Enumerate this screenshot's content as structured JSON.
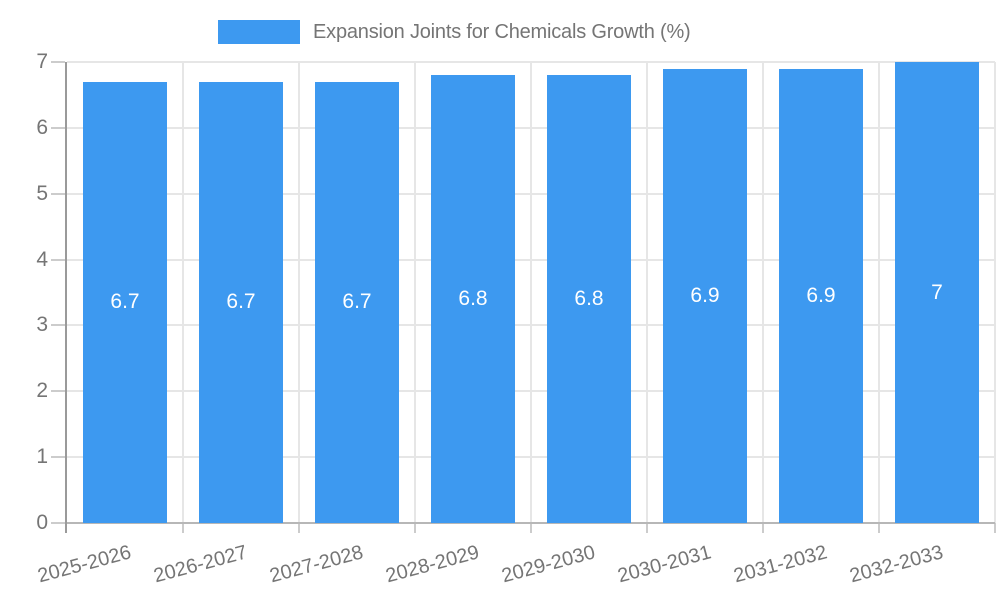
{
  "chart_data": {
    "type": "bar",
    "title": "",
    "legend": "Expansion Joints for Chemicals Growth (%)",
    "legend_position": "top",
    "categories": [
      "2025-2026",
      "2026-2027",
      "2027-2028",
      "2028-2029",
      "2029-2030",
      "2030-2031",
      "2031-2032",
      "2032-2033"
    ],
    "values": [
      6.7,
      6.7,
      6.7,
      6.8,
      6.8,
      6.9,
      6.9,
      7
    ],
    "value_labels": [
      "6.7",
      "6.7",
      "6.7",
      "6.8",
      "6.8",
      "6.9",
      "6.9",
      "7"
    ],
    "xlabel": "",
    "ylabel": "",
    "ylim": [
      0,
      7
    ],
    "yticks": [
      0,
      1,
      2,
      3,
      4,
      5,
      6,
      7
    ],
    "grid": true,
    "colors": {
      "bar": "#3D99F0",
      "bar_label": "#FFFFFF",
      "axis_text": "#757575",
      "gridline": "#E6E6E6",
      "baseline": "#B7B7B7",
      "axis_line": "#9A9A9A",
      "tick": "#CCCCCC"
    }
  }
}
